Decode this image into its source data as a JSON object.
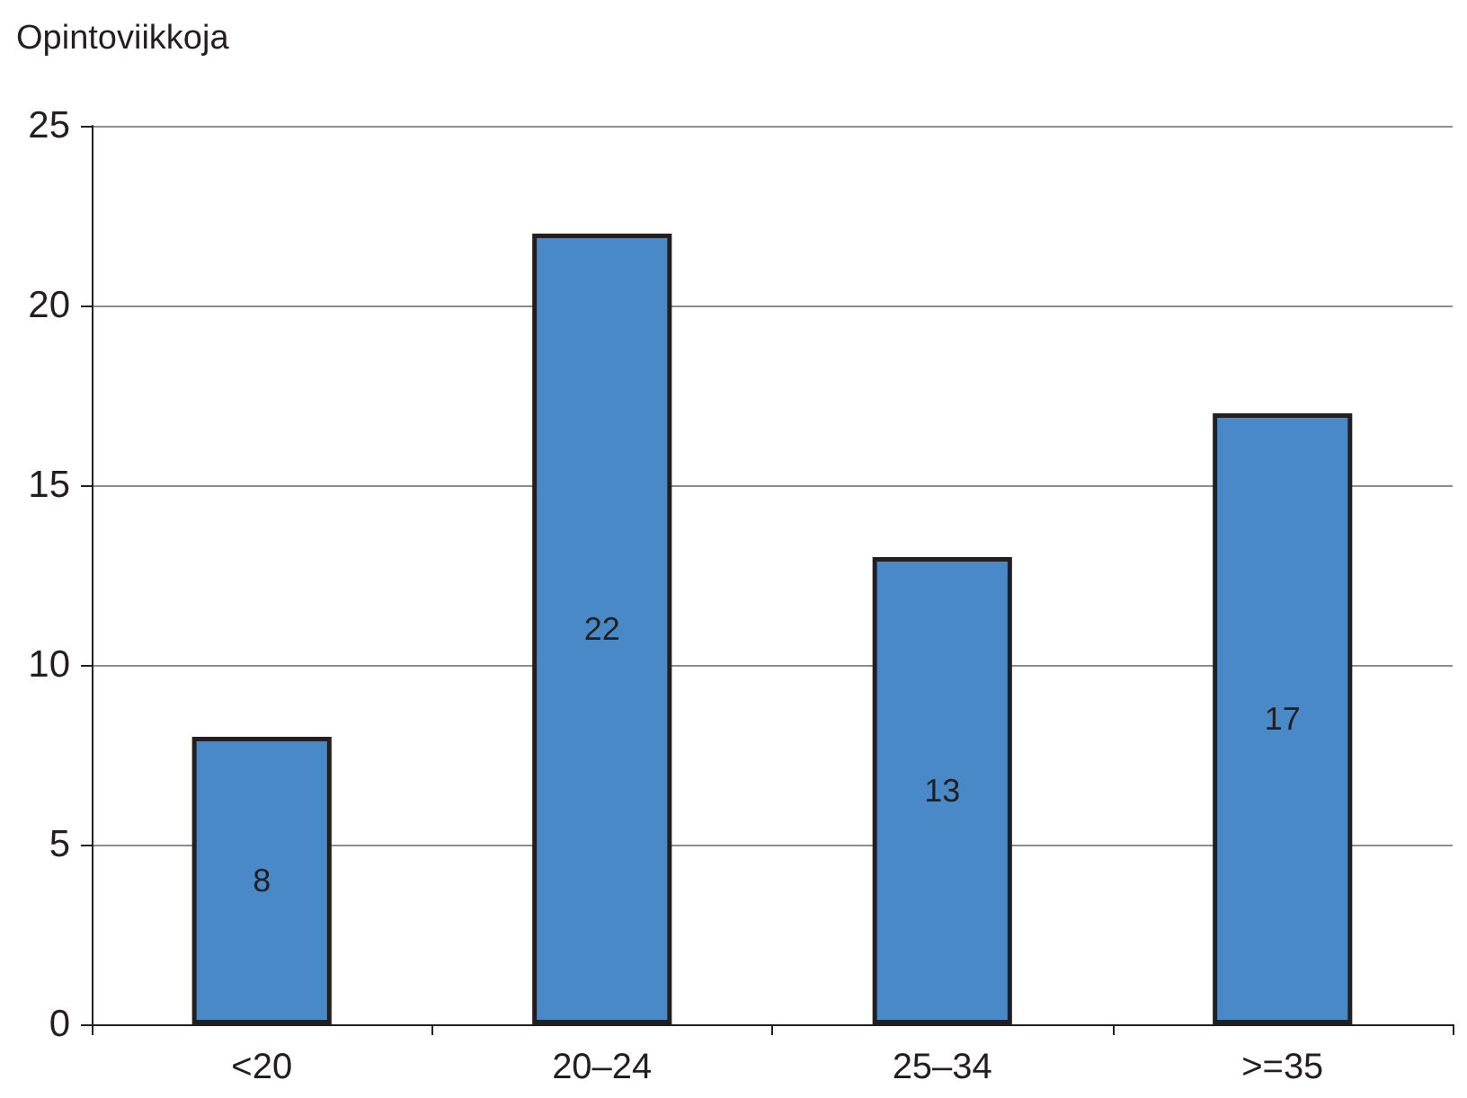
{
  "chart_data": {
    "type": "bar",
    "ylabel": "Opintoviikkoja",
    "categories": [
      "<20",
      "20–24",
      "25–34",
      ">=35"
    ],
    "values": [
      8,
      22,
      13,
      17
    ],
    "color": "#4a89c8",
    "ylim": [
      0,
      25
    ],
    "yticks": [
      0,
      5,
      10,
      15,
      20,
      25
    ],
    "grid": "y",
    "data_labels": true
  }
}
